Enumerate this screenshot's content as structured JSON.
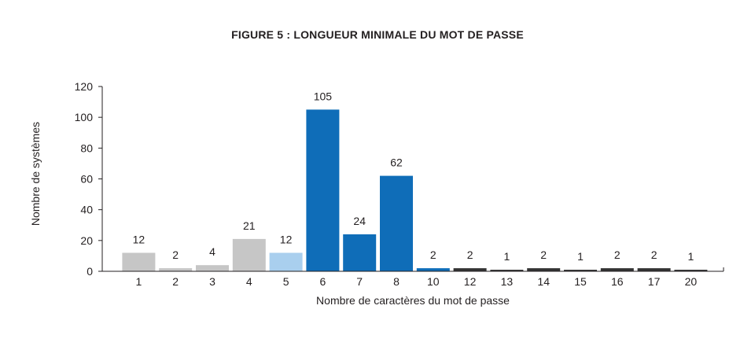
{
  "chart_data": {
    "type": "bar",
    "title": "FIGURE 5 : LONGUEUR MINIMALE DU MOT DE PASSE",
    "xlabel": "Nombre de caractères du mot de passe",
    "ylabel": "Nombre de systèmes",
    "ylim": [
      0,
      120
    ],
    "yticks": [
      0,
      20,
      40,
      60,
      80,
      100,
      120
    ],
    "grid": true,
    "categories": [
      "1",
      "2",
      "3",
      "4",
      "5",
      "6",
      "7",
      "8",
      "10",
      "12",
      "13",
      "14",
      "15",
      "16",
      "17",
      "20"
    ],
    "values": [
      12,
      2,
      4,
      21,
      12,
      105,
      24,
      62,
      2,
      2,
      1,
      2,
      1,
      2,
      2,
      1
    ],
    "colors": [
      "#c6c6c6",
      "#c6c6c6",
      "#c6c6c6",
      "#c6c6c6",
      "#a9cfee",
      "#0f6db8",
      "#0f6db8",
      "#0f6db8",
      "#0f6db8",
      "#333333",
      "#333333",
      "#333333",
      "#333333",
      "#333333",
      "#333333",
      "#333333"
    ]
  }
}
